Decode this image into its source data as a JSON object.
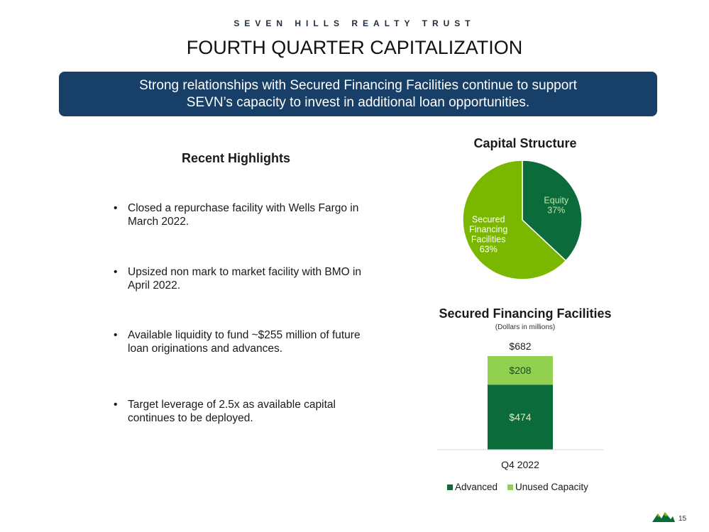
{
  "header": {
    "company": "SEVEN HILLS REALTY TRUST",
    "title": "FOURTH QUARTER CAPITALIZATION"
  },
  "banner": {
    "line1": "Strong relationships with Secured Financing Facilities continue to support",
    "line2": "SEVN’s capacity to invest in additional loan opportunities."
  },
  "highlights": {
    "title": "Recent Highlights",
    "items": [
      "Closed a repurchase facility with Wells Fargo in March 2022.",
      "Upsized non mark to market facility with BMO in April 2022.",
      "Available liquidity to fund ~$255 million of future loan originations and advances.",
      "Target leverage of 2.5x as available capital continues to be deployed."
    ]
  },
  "colors": {
    "banner": "#173f67",
    "dark_green": "#0b6b3a",
    "light_green": "#7ab800",
    "unused_green": "#92d050"
  },
  "chart_data": [
    {
      "type": "pie",
      "title": "Capital Structure",
      "slices": [
        {
          "label": "Equity",
          "percent_label": "37%",
          "value": 37,
          "color": "#0b6b3a"
        },
        {
          "label": "Secured Financing Facilities",
          "percent_label": "63%",
          "value": 63,
          "color": "#7ab800"
        }
      ]
    },
    {
      "type": "bar",
      "stacked": true,
      "title": "Secured Financing Facilities",
      "subtitle": "(Dollars in millions)",
      "categories": [
        "Q4 2022"
      ],
      "series": [
        {
          "name": "Advanced",
          "values": [
            474
          ],
          "labels": [
            "$474"
          ],
          "color": "#0b6b3a"
        },
        {
          "name": "Unused Capacity",
          "values": [
            208
          ],
          "labels": [
            "$208"
          ],
          "color": "#92d050"
        }
      ],
      "totals": [
        682
      ],
      "total_labels": [
        "$682"
      ]
    }
  ],
  "footer": {
    "page_number": "15",
    "logo_icon": "mountain-logo-icon"
  }
}
